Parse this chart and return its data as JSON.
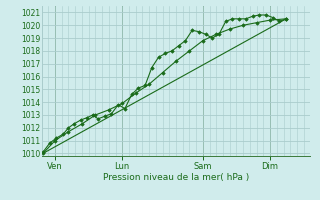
{
  "bg_color": "#d0ecec",
  "grid_color": "#aacccc",
  "line_color": "#1a6b1a",
  "marker_color": "#1a6b1a",
  "ylabel_ticks": [
    1010,
    1011,
    1012,
    1013,
    1014,
    1015,
    1016,
    1017,
    1018,
    1019,
    1020,
    1021
  ],
  "ylim": [
    1009.8,
    1021.5
  ],
  "xlabel": "Pression niveau de la mer( hPa )",
  "xlabel_color": "#1a6b1a",
  "day_labels": [
    "Ven",
    "Lun",
    "Sam",
    "Dim"
  ],
  "day_positions": [
    0.5,
    3.0,
    6.0,
    8.5
  ],
  "xlim": [
    0,
    10.0
  ],
  "series1_x": [
    0.05,
    0.3,
    0.55,
    0.8,
    1.0,
    1.2,
    1.45,
    1.7,
    1.9,
    2.1,
    2.35,
    2.6,
    2.85,
    3.1,
    3.35,
    3.6,
    3.85,
    4.1,
    4.35,
    4.6,
    4.85,
    5.1,
    5.35,
    5.6,
    5.85,
    6.1,
    6.35,
    6.6,
    6.85,
    7.1,
    7.35,
    7.6,
    7.85,
    8.1,
    8.35,
    8.6,
    8.85,
    9.1
  ],
  "series1_y": [
    1010.1,
    1010.8,
    1011.2,
    1011.5,
    1012.0,
    1012.3,
    1012.6,
    1012.8,
    1013.0,
    1012.7,
    1012.9,
    1013.1,
    1013.8,
    1013.5,
    1014.6,
    1015.1,
    1015.3,
    1016.7,
    1017.5,
    1017.8,
    1018.0,
    1018.4,
    1018.8,
    1019.6,
    1019.5,
    1019.3,
    1019.0,
    1019.3,
    1020.3,
    1020.5,
    1020.5,
    1020.5,
    1020.7,
    1020.8,
    1020.8,
    1020.6,
    1020.3,
    1020.5
  ],
  "series2_x": [
    0.05,
    0.5,
    1.0,
    1.5,
    2.0,
    2.5,
    3.0,
    3.5,
    4.0,
    4.5,
    5.0,
    5.5,
    6.0,
    6.5,
    7.0,
    7.5,
    8.0,
    8.5,
    9.1
  ],
  "series2_y": [
    1010.0,
    1011.0,
    1011.7,
    1012.3,
    1013.0,
    1013.4,
    1013.9,
    1014.7,
    1015.4,
    1016.3,
    1017.2,
    1018.0,
    1018.8,
    1019.3,
    1019.7,
    1020.0,
    1020.2,
    1020.4,
    1020.5
  ],
  "trend_x": [
    0.05,
    9.1
  ],
  "trend_y": [
    1010.0,
    1020.5
  ],
  "vline_positions": [
    0.5,
    3.0,
    6.0,
    8.5
  ],
  "minor_x_step": 0.25
}
